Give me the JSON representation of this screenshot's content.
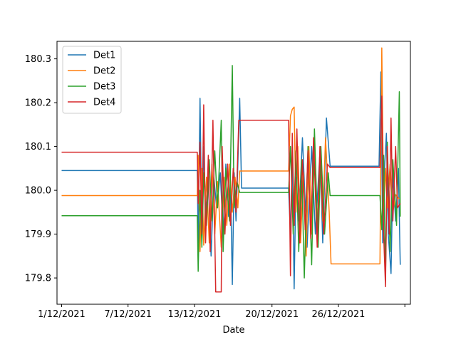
{
  "chart_data": {
    "type": "line",
    "title": "",
    "xlabel": "Date",
    "ylabel": "",
    "xlim": [
      "2021-11-30T14:00",
      "2022-01-01T12:00"
    ],
    "ylim": [
      179.74,
      180.34
    ],
    "x_ticks": [
      {
        "date": "2021-12-01",
        "label": "1/12/2021"
      },
      {
        "date": "2021-12-07",
        "label": "7/12/2021"
      },
      {
        "date": "2021-12-13",
        "label": "13/12/2021"
      },
      {
        "date": "2021-12-20",
        "label": "20/12/2021"
      },
      {
        "date": "2021-12-26",
        "label": "26/12/2021"
      },
      {
        "date": "2022-01-01",
        "label": ""
      }
    ],
    "y_ticks": [
      179.8,
      179.9,
      180.0,
      180.1,
      180.2,
      180.3
    ],
    "grid": false,
    "legend_position": "top-left",
    "series": [
      {
        "name": "Det1",
        "color": "#1f77b4",
        "points": [
          [
            "2021-12-01T00:00",
            180.045
          ],
          [
            "2021-12-13T06:00",
            180.045
          ],
          [
            "2021-12-13T08:00",
            179.88
          ],
          [
            "2021-12-13T12:00",
            180.21
          ],
          [
            "2021-12-13T16:00",
            179.9
          ],
          [
            "2021-12-13T20:00",
            180.1
          ],
          [
            "2021-12-14T00:00",
            179.95
          ],
          [
            "2021-12-14T06:00",
            180.02
          ],
          [
            "2021-12-14T12:00",
            179.85
          ],
          [
            "2021-12-14T18:00",
            180.03
          ],
          [
            "2021-12-15T00:00",
            179.96
          ],
          [
            "2021-12-15T08:00",
            180.04
          ],
          [
            "2021-12-15T14:00",
            179.9
          ],
          [
            "2021-12-15T20:00",
            180.06
          ],
          [
            "2021-12-16T02:00",
            179.94
          ],
          [
            "2021-12-16T06:00",
            180.02
          ],
          [
            "2021-12-16T10:00",
            179.785
          ],
          [
            "2021-12-16T14:00",
            180.04
          ],
          [
            "2021-12-16T18:00",
            179.93
          ],
          [
            "2021-12-16T22:00",
            180.06
          ],
          [
            "2021-12-17T02:00",
            180.21
          ],
          [
            "2021-12-17T06:00",
            180.005
          ],
          [
            "2021-12-21T12:00",
            180.005
          ],
          [
            "2021-12-21T16:00",
            179.9
          ],
          [
            "2021-12-21T20:00",
            180.08
          ],
          [
            "2021-12-22T00:00",
            179.775
          ],
          [
            "2021-12-22T04:00",
            180.03
          ],
          [
            "2021-12-22T10:00",
            179.93
          ],
          [
            "2021-12-22T18:00",
            180.12
          ],
          [
            "2021-12-23T04:00",
            179.87
          ],
          [
            "2021-12-23T14:00",
            180.1
          ],
          [
            "2021-12-23T22:00",
            179.9
          ],
          [
            "2021-12-24T08:00",
            180.09
          ],
          [
            "2021-12-24T14:00",
            179.88
          ],
          [
            "2021-12-24T22:00",
            180.165
          ],
          [
            "2021-12-25T06:00",
            180.055
          ],
          [
            "2021-12-29T16:00",
            180.055
          ],
          [
            "2021-12-29T20:00",
            180.27
          ],
          [
            "2021-12-30T00:00",
            179.88
          ],
          [
            "2021-12-30T04:00",
            180.05
          ],
          [
            "2021-12-30T08:00",
            180.13
          ],
          [
            "2021-12-30T12:00",
            179.9
          ],
          [
            "2021-12-30T18:00",
            179.81
          ],
          [
            "2021-12-30T22:00",
            180.04
          ],
          [
            "2021-12-31T04:00",
            179.93
          ],
          [
            "2021-12-31T10:00",
            180.05
          ],
          [
            "2021-12-31T14:00",
            179.83
          ]
        ]
      },
      {
        "name": "Det2",
        "color": "#ff7f0e",
        "points": [
          [
            "2021-12-01T00:00",
            179.988
          ],
          [
            "2021-12-13T06:00",
            179.988
          ],
          [
            "2021-12-13T08:00",
            180.08
          ],
          [
            "2021-12-13T12:00",
            179.86
          ],
          [
            "2021-12-13T16:00",
            180.05
          ],
          [
            "2021-12-13T20:00",
            179.875
          ],
          [
            "2021-12-14T02:00",
            180.03
          ],
          [
            "2021-12-14T08:00",
            179.88
          ],
          [
            "2021-12-14T14:00",
            180.06
          ],
          [
            "2021-12-14T20:00",
            179.9
          ],
          [
            "2021-12-15T02:00",
            180.02
          ],
          [
            "2021-12-15T10:00",
            179.87
          ],
          [
            "2021-12-15T16:00",
            180.03
          ],
          [
            "2021-12-15T22:00",
            179.92
          ],
          [
            "2021-12-16T04:00",
            180.06
          ],
          [
            "2021-12-16T10:00",
            179.95
          ],
          [
            "2021-12-16T16:00",
            180.03
          ],
          [
            "2021-12-16T22:00",
            179.96
          ],
          [
            "2021-12-17T02:00",
            180.044
          ],
          [
            "2021-12-21T12:00",
            180.044
          ],
          [
            "2021-12-21T16:00",
            180.17
          ],
          [
            "2021-12-21T20:00",
            180.185
          ],
          [
            "2021-12-22T00:00",
            180.19
          ],
          [
            "2021-12-22T04:00",
            179.95
          ],
          [
            "2021-12-22T08:00",
            180.1
          ],
          [
            "2021-12-22T14:00",
            179.88
          ],
          [
            "2021-12-22T20:00",
            180.04
          ],
          [
            "2021-12-23T02:00",
            179.85
          ],
          [
            "2021-12-23T08:00",
            180.1
          ],
          [
            "2021-12-23T14:00",
            179.9
          ],
          [
            "2021-12-23T20:00",
            180.09
          ],
          [
            "2021-12-24T02:00",
            179.89
          ],
          [
            "2021-12-24T08:00",
            180.1
          ],
          [
            "2021-12-24T14:00",
            179.93
          ],
          [
            "2021-12-24T20:00",
            180.12
          ],
          [
            "2021-12-25T04:00",
            179.95
          ],
          [
            "2021-12-25T08:00",
            179.832
          ],
          [
            "2021-12-29T18:00",
            179.832
          ],
          [
            "2021-12-29T22:00",
            180.325
          ],
          [
            "2021-12-30T02:00",
            179.95
          ],
          [
            "2021-12-30T06:00",
            180.05
          ],
          [
            "2021-12-30T10:00",
            179.96
          ],
          [
            "2021-12-30T16:00",
            180.06
          ],
          [
            "2021-12-30T22:00",
            179.95
          ],
          [
            "2021-12-31T04:00",
            179.99
          ],
          [
            "2021-12-31T12:00",
            179.98
          ]
        ]
      },
      {
        "name": "Det3",
        "color": "#2ca02c",
        "points": [
          [
            "2021-12-01T00:00",
            179.942
          ],
          [
            "2021-12-13T06:00",
            179.942
          ],
          [
            "2021-12-13T08:00",
            179.815
          ],
          [
            "2021-12-13T12:00",
            180.0
          ],
          [
            "2021-12-13T16:00",
            179.87
          ],
          [
            "2021-12-13T20:00",
            180.04
          ],
          [
            "2021-12-14T02:00",
            179.92
          ],
          [
            "2021-12-14T08:00",
            180.07
          ],
          [
            "2021-12-14T14:00",
            179.93
          ],
          [
            "2021-12-14T20:00",
            180.09
          ],
          [
            "2021-12-15T02:00",
            179.96
          ],
          [
            "2021-12-15T10:00",
            180.16
          ],
          [
            "2021-12-15T14:00",
            179.86
          ],
          [
            "2021-12-15T20:00",
            180.05
          ],
          [
            "2021-12-16T04:00",
            179.93
          ],
          [
            "2021-12-16T10:00",
            180.285
          ],
          [
            "2021-12-16T14:00",
            179.96
          ],
          [
            "2021-12-16T20:00",
            180.02
          ],
          [
            "2021-12-17T02:00",
            179.995
          ],
          [
            "2021-12-21T12:00",
            179.995
          ],
          [
            "2021-12-21T16:00",
            180.1
          ],
          [
            "2021-12-21T22:00",
            179.9
          ],
          [
            "2021-12-22T04:00",
            180.09
          ],
          [
            "2021-12-22T10:00",
            179.86
          ],
          [
            "2021-12-22T16:00",
            180.07
          ],
          [
            "2021-12-22T22:00",
            179.8
          ],
          [
            "2021-12-23T06:00",
            180.1
          ],
          [
            "2021-12-23T14:00",
            179.83
          ],
          [
            "2021-12-23T20:00",
            180.14
          ],
          [
            "2021-12-24T04:00",
            179.87
          ],
          [
            "2021-12-24T10:00",
            180.1
          ],
          [
            "2021-12-24T18:00",
            179.9
          ],
          [
            "2021-12-25T02:00",
            180.04
          ],
          [
            "2021-12-25T06:00",
            179.988
          ],
          [
            "2021-12-29T18:00",
            179.988
          ],
          [
            "2021-12-29T22:00",
            179.91
          ],
          [
            "2021-12-30T02:00",
            180.08
          ],
          [
            "2021-12-30T06:00",
            179.795
          ],
          [
            "2021-12-30T10:00",
            180.11
          ],
          [
            "2021-12-30T16:00",
            179.86
          ],
          [
            "2021-12-30T22:00",
            180.07
          ],
          [
            "2021-12-31T06:00",
            179.92
          ],
          [
            "2021-12-31T12:00",
            180.225
          ],
          [
            "2021-12-31T14:00",
            179.94
          ]
        ]
      },
      {
        "name": "Det4",
        "color": "#d62728",
        "points": [
          [
            "2021-12-01T00:00",
            180.087
          ],
          [
            "2021-12-13T06:00",
            180.087
          ],
          [
            "2021-12-13T08:00",
            179.97
          ],
          [
            "2021-12-13T12:00",
            180.11
          ],
          [
            "2021-12-13T16:00",
            179.9
          ],
          [
            "2021-12-13T20:00",
            180.195
          ],
          [
            "2021-12-14T00:00",
            179.88
          ],
          [
            "2021-12-14T06:00",
            180.08
          ],
          [
            "2021-12-14T10:00",
            179.86
          ],
          [
            "2021-12-14T16:00",
            180.16
          ],
          [
            "2021-12-14T22:00",
            179.768
          ],
          [
            "2021-12-15T10:00",
            179.768
          ],
          [
            "2021-12-15T12:00",
            180.1
          ],
          [
            "2021-12-15T18:00",
            179.9
          ],
          [
            "2021-12-16T00:00",
            180.06
          ],
          [
            "2021-12-16T06:00",
            179.92
          ],
          [
            "2021-12-16T12:00",
            180.05
          ],
          [
            "2021-12-16T18:00",
            179.95
          ],
          [
            "2021-12-17T00:00",
            180.16
          ],
          [
            "2021-12-21T12:00",
            180.16
          ],
          [
            "2021-12-21T16:00",
            179.805
          ],
          [
            "2021-12-21T20:00",
            180.13
          ],
          [
            "2021-12-22T00:00",
            179.92
          ],
          [
            "2021-12-22T06:00",
            180.14
          ],
          [
            "2021-12-22T12:00",
            179.88
          ],
          [
            "2021-12-22T18:00",
            180.07
          ],
          [
            "2021-12-23T00:00",
            179.91
          ],
          [
            "2021-12-23T06:00",
            180.09
          ],
          [
            "2021-12-23T12:00",
            179.89
          ],
          [
            "2021-12-23T18:00",
            180.12
          ],
          [
            "2021-12-24T02:00",
            179.87
          ],
          [
            "2021-12-24T08:00",
            180.1
          ],
          [
            "2021-12-24T16:00",
            179.9
          ],
          [
            "2021-12-25T00:00",
            180.06
          ],
          [
            "2021-12-25T06:00",
            180.052
          ],
          [
            "2021-12-29T18:00",
            180.052
          ],
          [
            "2021-12-29T22:00",
            180.215
          ],
          [
            "2021-12-30T02:00",
            179.9
          ],
          [
            "2021-12-30T06:00",
            179.78
          ],
          [
            "2021-12-30T10:00",
            180.1
          ],
          [
            "2021-12-30T14:00",
            179.9
          ],
          [
            "2021-12-30T18:00",
            180.165
          ],
          [
            "2021-12-30T22:00",
            179.93
          ],
          [
            "2021-12-31T04:00",
            180.1
          ],
          [
            "2021-12-31T08:00",
            179.96
          ],
          [
            "2021-12-31T14:00",
            179.97
          ]
        ]
      }
    ]
  }
}
